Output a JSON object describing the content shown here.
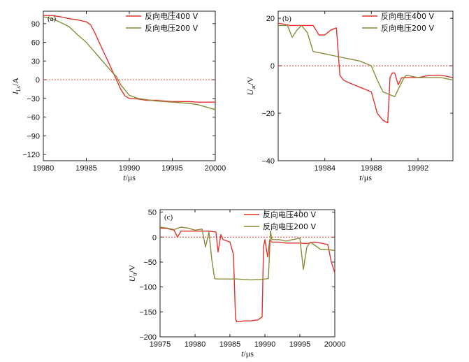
{
  "colors": {
    "red": "#e4322b",
    "olive": "#8a8a3a"
  },
  "chart_data": [
    {
      "type": "line",
      "panel": "(a)",
      "xlabel": "t/μs",
      "ylabel": "I_Ls/A",
      "ylabel_main": "I",
      "ylabel_sub": "Ls",
      "ylabel_unit": "/A",
      "xlim": [
        19980,
        20000
      ],
      "ylim": [
        -130,
        110
      ],
      "xticks": [
        19980,
        19985,
        19990,
        19995,
        20000
      ],
      "yticks": [
        90,
        60,
        30,
        0,
        -30,
        -60,
        -90,
        -120
      ],
      "xtick_labels": [
        "19980",
        "19985",
        "19990",
        "19995",
        "20000"
      ],
      "ytick_labels": [
        "90",
        "60",
        "30",
        "0",
        "−30",
        "−60",
        "−90",
        "−120"
      ],
      "hline": 0,
      "legend": "top-right",
      "series": [
        {
          "name": "反向电压400 V",
          "color": "#e4322b",
          "x": [
            19980,
            19981,
            19982,
            19983,
            19984,
            19985,
            19985.5,
            19986,
            19986.5,
            19987,
            19987.5,
            19988,
            19988.5,
            19989,
            19989.5,
            19990,
            19991,
            19992,
            19993,
            19994,
            19995,
            19996,
            19997,
            19998,
            19999,
            20000
          ],
          "y": [
            103,
            103,
            101,
            98,
            96,
            93,
            88,
            75,
            60,
            45,
            30,
            15,
            0,
            -15,
            -26,
            -30,
            -31,
            -33,
            -33,
            -34,
            -35,
            -35,
            -35,
            -36,
            -36,
            -36
          ]
        },
        {
          "name": "反向电压200 V",
          "color": "#8a8a3a",
          "x": [
            19980,
            19981,
            19982,
            19983,
            19984,
            19985,
            19986,
            19986.5,
            19987,
            19987.5,
            19988,
            19988.5,
            19989,
            19990,
            19991,
            19992,
            19993,
            19994,
            19995,
            19996,
            19997,
            19998,
            19999,
            20000
          ],
          "y": [
            101,
            98,
            92,
            85,
            72,
            60,
            44,
            36,
            28,
            20,
            12,
            5,
            -8,
            -25,
            -30,
            -32,
            -34,
            -35,
            -36,
            -37,
            -38,
            -40,
            -44,
            -48
          ]
        }
      ]
    },
    {
      "type": "line",
      "panel": "(b)",
      "xlabel": "t/μs",
      "ylabel": "U_ar/V",
      "ylabel_main": "U",
      "ylabel_sub": "ar",
      "ylabel_unit": "/V",
      "xlim": [
        19980,
        19995
      ],
      "ylim": [
        -40,
        23
      ],
      "xticks": [
        19984,
        19988,
        19992
      ],
      "yticks": [
        20,
        0,
        -20,
        -40
      ],
      "xtick_labels": [
        "19984",
        "19988",
        "19992"
      ],
      "ytick_labels": [
        "20",
        "0",
        "−20",
        "−40"
      ],
      "hline": 0,
      "legend": "top-right",
      "series": [
        {
          "name": "反向电压400 V",
          "color": "#e4322b",
          "x": [
            19980,
            19981,
            19982,
            19983,
            19983.5,
            19984,
            19984.5,
            19985,
            19985.3,
            19985.6,
            19986,
            19987,
            19988,
            19988.5,
            19989,
            19989.4,
            19989.6,
            19989.8,
            19990,
            19990.3,
            19990.6,
            19991,
            19992,
            19993,
            19994,
            19995
          ],
          "y": [
            18,
            17,
            17,
            17,
            13,
            13,
            15,
            16,
            -4,
            -6,
            -7,
            -9,
            -11,
            -20,
            -23,
            -24,
            -5,
            -3,
            -3,
            -8,
            -5,
            -5,
            -5,
            -4,
            -4,
            -5
          ]
        },
        {
          "name": "反向电压200 V",
          "color": "#8a8a3a",
          "x": [
            19980,
            19980.8,
            19981.2,
            19981.6,
            19982,
            19982.5,
            19983,
            19984,
            19985,
            19986,
            19987,
            19988,
            19988.5,
            19989,
            19989.5,
            19990,
            19990.4,
            19990.8,
            19991,
            19992,
            19993,
            19994,
            19995
          ],
          "y": [
            17,
            17,
            12,
            15,
            17,
            14,
            6,
            5,
            4,
            3,
            2,
            0,
            -6,
            -11,
            -12,
            -13,
            -9,
            -5,
            -4,
            -5,
            -5,
            -5,
            -6
          ]
        }
      ]
    },
    {
      "type": "line",
      "panel": "(c)",
      "xlabel": "t/μs",
      "ylabel": "U_0/V",
      "ylabel_main": "U",
      "ylabel_sub": "0",
      "ylabel_unit": "/V",
      "xlim": [
        19975,
        20000
      ],
      "ylim": [
        -200,
        55
      ],
      "xticks": [
        19975,
        19980,
        19985,
        19990,
        19995,
        20000
      ],
      "yticks": [
        50,
        0,
        -50,
        -100,
        -150,
        -200
      ],
      "xtick_labels": [
        "19975",
        "19980",
        "19985",
        "19990",
        "19995",
        "20000"
      ],
      "ytick_labels": [
        "50",
        "0",
        "−50",
        "−100",
        "−150",
        "−200"
      ],
      "hline": 0,
      "legend": "top-right",
      "series": [
        {
          "name": "反向电压400 V",
          "color": "#e4322b",
          "x": [
            19975,
            19976,
            19977,
            19977.5,
            19978,
            19979,
            19980,
            19981,
            19982,
            19983,
            19983.3,
            19983.7,
            19984,
            19985,
            19985.5,
            19985.8,
            19986,
            19987,
            19988,
            19989,
            19989.6,
            19989.8,
            19990,
            19990.4,
            19990.7,
            19991,
            19992,
            19993,
            19994,
            19995,
            19996,
            19997,
            19998,
            19999,
            19999.5,
            20000
          ],
          "y": [
            18,
            17,
            14,
            0,
            12,
            12,
            12,
            12,
            12,
            10,
            -30,
            5,
            -5,
            -10,
            -35,
            -165,
            -170,
            -168,
            -168,
            -166,
            -160,
            -20,
            -5,
            -40,
            -5,
            -10,
            -10,
            -12,
            -12,
            -12,
            -13,
            -10,
            -12,
            -15,
            -50,
            -72
          ]
        },
        {
          "name": "反向电压200 V",
          "color": "#8a8a3a",
          "x": [
            19975,
            19976,
            19977,
            19978,
            19979,
            19980,
            19981,
            19981.5,
            19982,
            19982.4,
            19982.8,
            19983,
            19984,
            19985,
            19986,
            19987,
            19988,
            19989,
            19990,
            19990.5,
            19990.8,
            19991,
            19992,
            19993,
            19994,
            19995,
            19995.5,
            19996,
            19996.5,
            19997,
            19998,
            19999,
            20000
          ],
          "y": [
            20,
            18,
            15,
            20,
            18,
            14,
            16,
            -20,
            10,
            -45,
            -83,
            -84,
            -84,
            -84,
            -84,
            -85,
            -86,
            -85,
            -84,
            -83,
            12,
            -5,
            -5,
            -8,
            -5,
            -2,
            -65,
            -20,
            -10,
            -15,
            -25,
            -25,
            -27
          ]
        }
      ]
    }
  ]
}
